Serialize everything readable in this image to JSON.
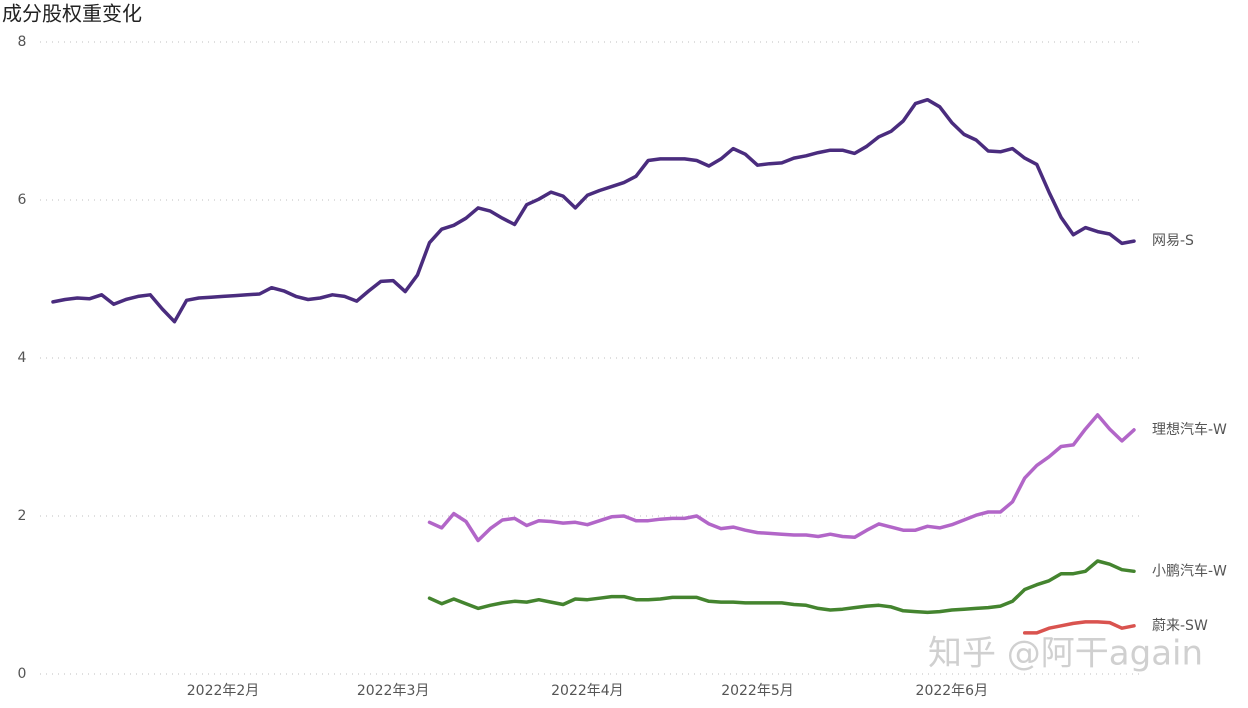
{
  "chart_data": {
    "type": "line",
    "title": "成分股权重变化",
    "categories": [
      null,
      null,
      null,
      null,
      null,
      null,
      null,
      null,
      null,
      null,
      null,
      null,
      null,
      null,
      "2022年2月",
      null,
      null,
      null,
      null,
      null,
      null,
      null,
      null,
      null,
      null,
      null,
      null,
      null,
      "2022年3月",
      null,
      null,
      null,
      null,
      null,
      null,
      null,
      null,
      null,
      null,
      null,
      null,
      null,
      null,
      null,
      "2022年4月",
      null,
      null,
      null,
      null,
      null,
      null,
      null,
      null,
      null,
      null,
      null,
      null,
      null,
      "2022年5月",
      null,
      null,
      null,
      null,
      null,
      null,
      null,
      null,
      null,
      null,
      null,
      null,
      null,
      null,
      null,
      "2022年6月",
      null,
      null,
      null,
      null,
      null,
      null,
      null,
      null,
      null,
      null,
      null,
      null,
      null,
      null,
      null
    ],
    "series": [
      {
        "name": "网易-S",
        "color": "#4a2c7e",
        "values": [
          4.71,
          4.74,
          4.76,
          4.75,
          4.8,
          4.68,
          4.74,
          4.78,
          4.8,
          4.62,
          4.46,
          4.73,
          4.76,
          4.77,
          4.78,
          4.79,
          4.8,
          4.81,
          4.89,
          4.85,
          4.78,
          4.74,
          4.76,
          4.8,
          4.78,
          4.72,
          4.85,
          4.97,
          4.98,
          4.84,
          5.05,
          5.46,
          5.63,
          5.68,
          5.77,
          5.9,
          5.86,
          5.77,
          5.69,
          5.94,
          6.01,
          6.1,
          6.05,
          5.9,
          6.06,
          6.12,
          6.17,
          6.22,
          6.3,
          6.5,
          6.52,
          6.52,
          6.52,
          6.5,
          6.43,
          6.52,
          6.65,
          6.58,
          6.44,
          6.46,
          6.47,
          6.53,
          6.56,
          6.6,
          6.63,
          6.63,
          6.59,
          6.68,
          6.8,
          6.87,
          7.0,
          7.22,
          7.27,
          7.18,
          6.98,
          6.83,
          6.76,
          6.62,
          6.61,
          6.65,
          6.53,
          6.45,
          6.1,
          5.78,
          5.56,
          5.65,
          5.6,
          5.57,
          5.45,
          5.48
        ]
      },
      {
        "name": "理想汽车-W",
        "color": "#b266c8",
        "values": [
          null,
          null,
          null,
          null,
          null,
          null,
          null,
          null,
          null,
          null,
          null,
          null,
          null,
          null,
          null,
          null,
          null,
          null,
          null,
          null,
          null,
          null,
          null,
          null,
          null,
          null,
          null,
          null,
          null,
          null,
          null,
          1.92,
          1.85,
          2.03,
          1.93,
          1.69,
          1.84,
          1.95,
          1.97,
          1.88,
          1.94,
          1.93,
          1.91,
          1.92,
          1.89,
          1.94,
          1.99,
          2.0,
          1.94,
          1.94,
          1.96,
          1.97,
          1.97,
          2.0,
          1.9,
          1.84,
          1.86,
          1.82,
          1.79,
          1.78,
          1.77,
          1.76,
          1.76,
          1.74,
          1.77,
          1.74,
          1.73,
          1.82,
          1.9,
          1.86,
          1.82,
          1.82,
          1.87,
          1.85,
          1.89,
          1.95,
          2.01,
          2.05,
          2.05,
          2.18,
          2.48,
          2.64,
          2.75,
          2.88,
          2.9,
          3.1,
          3.28,
          3.1,
          2.95,
          3.09
        ]
      },
      {
        "name": "小鹏汽车-W",
        "color": "#44842f",
        "values": [
          null,
          null,
          null,
          null,
          null,
          null,
          null,
          null,
          null,
          null,
          null,
          null,
          null,
          null,
          null,
          null,
          null,
          null,
          null,
          null,
          null,
          null,
          null,
          null,
          null,
          null,
          null,
          null,
          null,
          null,
          null,
          0.96,
          0.89,
          0.95,
          0.89,
          0.83,
          0.87,
          0.9,
          0.92,
          0.91,
          0.94,
          0.91,
          0.88,
          0.95,
          0.94,
          0.96,
          0.98,
          0.98,
          0.94,
          0.94,
          0.95,
          0.97,
          0.97,
          0.97,
          0.92,
          0.91,
          0.91,
          0.9,
          0.9,
          0.9,
          0.9,
          0.88,
          0.87,
          0.83,
          0.81,
          0.82,
          0.84,
          0.86,
          0.87,
          0.85,
          0.8,
          0.79,
          0.78,
          0.79,
          0.81,
          0.82,
          0.83,
          0.84,
          0.86,
          0.92,
          1.07,
          1.13,
          1.18,
          1.27,
          1.27,
          1.3,
          1.43,
          1.39,
          1.32,
          1.3
        ]
      },
      {
        "name": "蔚来-SW",
        "color": "#d9534f",
        "values": [
          null,
          null,
          null,
          null,
          null,
          null,
          null,
          null,
          null,
          null,
          null,
          null,
          null,
          null,
          null,
          null,
          null,
          null,
          null,
          null,
          null,
          null,
          null,
          null,
          null,
          null,
          null,
          null,
          null,
          null,
          null,
          null,
          null,
          null,
          null,
          null,
          null,
          null,
          null,
          null,
          null,
          null,
          null,
          null,
          null,
          null,
          null,
          null,
          null,
          null,
          null,
          null,
          null,
          null,
          null,
          null,
          null,
          null,
          null,
          null,
          null,
          null,
          null,
          null,
          null,
          null,
          null,
          null,
          null,
          null,
          null,
          null,
          null,
          null,
          null,
          null,
          null,
          null,
          null,
          null,
          0.52,
          0.52,
          0.58,
          0.61,
          0.64,
          0.66,
          0.66,
          0.65,
          0.58,
          0.61
        ]
      }
    ],
    "ylim": [
      0,
      8
    ],
    "yticks": [
      0,
      2,
      4,
      6,
      8
    ],
    "grid": true,
    "watermark": "知乎 @阿干again"
  }
}
